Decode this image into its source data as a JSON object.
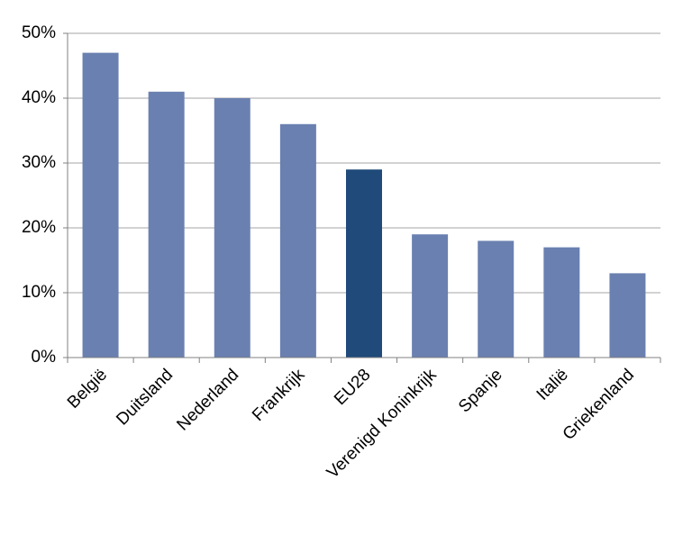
{
  "chart_data": {
    "type": "bar",
    "categories": [
      "België",
      "Duitsland",
      "Nederland",
      "Frankrijk",
      "EU28",
      "Verenigd Koninkrijk",
      "Spanje",
      "Italië",
      "Griekenland"
    ],
    "values": [
      47,
      41,
      40,
      36,
      29,
      19,
      18,
      17,
      13
    ],
    "colors": [
      "#6a80b0",
      "#6a80b0",
      "#6a80b0",
      "#6a80b0",
      "#1f4a7a",
      "#6a80b0",
      "#6a80b0",
      "#6a80b0",
      "#6a80b0"
    ],
    "ylim": [
      0,
      50
    ],
    "yticks": [
      {
        "value": 0,
        "label": "0%"
      },
      {
        "value": 10,
        "label": "10%"
      },
      {
        "value": 20,
        "label": "20%"
      },
      {
        "value": 30,
        "label": "30%"
      },
      {
        "value": 40,
        "label": "40%"
      },
      {
        "value": 50,
        "label": "50%"
      }
    ],
    "grid": true
  }
}
